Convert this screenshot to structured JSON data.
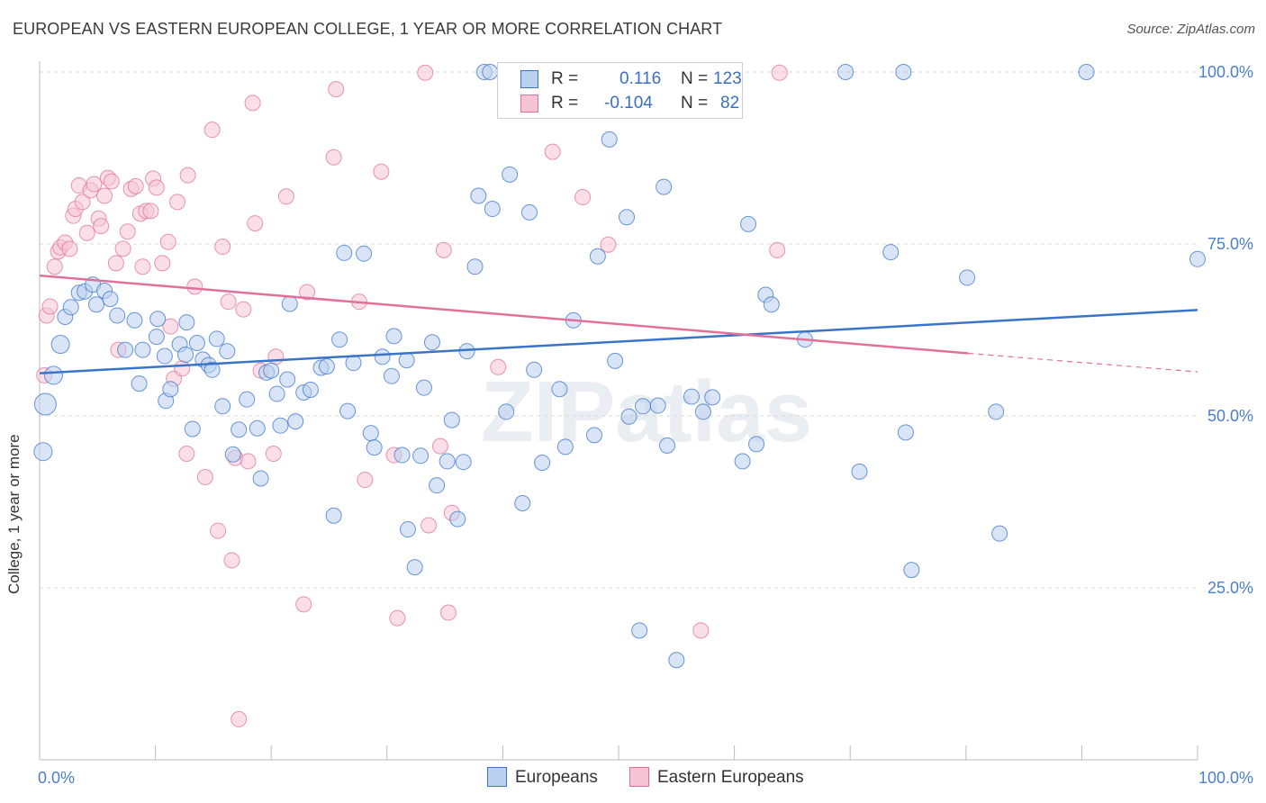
{
  "title": "EUROPEAN VS EASTERN EUROPEAN COLLEGE, 1 YEAR OR MORE CORRELATION CHART",
  "source": "Source: ZipAtlas.com",
  "watermark": "ZIPatlas",
  "colors": {
    "blue": "#3a74c8",
    "blue_fill": "#b9d0ef",
    "pink": "#e0729a",
    "pink_fill": "#f6c4d5",
    "grid": "#d8d8d8",
    "tick_label": "#4a7fcc"
  },
  "legend": {
    "rows": [
      {
        "r_label": "R =",
        "r_value": "0.116",
        "n_label": "N =",
        "n_value": "123"
      },
      {
        "r_label": "R =",
        "r_value": "-0.104",
        "n_label": "N =",
        "n_value": "82"
      }
    ]
  },
  "chart_data": {
    "type": "scatter",
    "title": "EUROPEAN VS EASTERN EUROPEAN COLLEGE, 1 YEAR OR MORE CORRELATION CHART",
    "xlabel": "",
    "ylabel": "College, 1 year or more",
    "xlim": [
      0,
      100
    ],
    "ylim": [
      0,
      100
    ],
    "x_tick_labels": [
      "0.0%",
      "100.0%"
    ],
    "y_ticks": [
      25,
      50,
      75,
      100
    ],
    "y_tick_labels": [
      "25.0%",
      "50.0%",
      "75.0%",
      "100.0%"
    ],
    "grid": true,
    "series": [
      {
        "name": "Europeans",
        "color": "#3a74c8",
        "r": 0.116,
        "n": 123,
        "trend": {
          "x0": 0,
          "y0": 56.2,
          "x1": 100,
          "y1": 65.4
        },
        "points": [
          [
            0.3,
            44.8
          ],
          [
            0.5,
            51.7
          ],
          [
            1.2,
            55.9
          ],
          [
            1.8,
            60.4
          ],
          [
            2.2,
            64.4
          ],
          [
            2.7,
            65.8
          ],
          [
            3.4,
            67.9
          ],
          [
            3.9,
            68.1
          ],
          [
            4.6,
            69.1
          ],
          [
            4.9,
            66.2
          ],
          [
            5.6,
            68.2
          ],
          [
            6.1,
            67.0
          ],
          [
            6.7,
            64.6
          ],
          [
            7.4,
            59.6
          ],
          [
            8.2,
            63.9
          ],
          [
            8.6,
            54.7
          ],
          [
            8.9,
            59.6
          ],
          [
            10.2,
            64.1
          ],
          [
            10.1,
            61.5
          ],
          [
            10.8,
            58.7
          ],
          [
            10.9,
            52.2
          ],
          [
            11.3,
            53.9
          ],
          [
            12.1,
            60.4
          ],
          [
            12.6,
            58.9
          ],
          [
            12.7,
            63.6
          ],
          [
            13.2,
            48.1
          ],
          [
            13.6,
            60.6
          ],
          [
            14.1,
            58.2
          ],
          [
            14.6,
            57.4
          ],
          [
            14.9,
            56.7
          ],
          [
            15.3,
            61.2
          ],
          [
            15.8,
            51.4
          ],
          [
            16.2,
            59.4
          ],
          [
            16.7,
            44.4
          ],
          [
            17.2,
            48.0
          ],
          [
            17.9,
            52.4
          ],
          [
            18.8,
            48.2
          ],
          [
            19.1,
            40.9
          ],
          [
            19.6,
            56.3
          ],
          [
            20.0,
            56.6
          ],
          [
            20.5,
            53.2
          ],
          [
            20.8,
            48.6
          ],
          [
            21.4,
            55.3
          ],
          [
            21.6,
            66.3
          ],
          [
            22.1,
            49.2
          ],
          [
            22.8,
            53.4
          ],
          [
            23.4,
            53.8
          ],
          [
            24.3,
            57.0
          ],
          [
            24.8,
            57.2
          ],
          [
            25.4,
            35.5
          ],
          [
            25.9,
            61.1
          ],
          [
            26.3,
            73.7
          ],
          [
            26.6,
            50.7
          ],
          [
            27.1,
            57.7
          ],
          [
            28.0,
            73.6
          ],
          [
            28.6,
            47.5
          ],
          [
            28.9,
            45.4
          ],
          [
            29.6,
            58.6
          ],
          [
            30.4,
            55.8
          ],
          [
            30.6,
            61.6
          ],
          [
            31.3,
            44.3
          ],
          [
            31.7,
            58.1
          ],
          [
            31.8,
            33.5
          ],
          [
            32.4,
            28.0
          ],
          [
            32.9,
            44.2
          ],
          [
            33.2,
            54.1
          ],
          [
            33.9,
            60.7
          ],
          [
            34.3,
            39.9
          ],
          [
            35.2,
            43.4
          ],
          [
            35.6,
            49.4
          ],
          [
            36.1,
            35.0
          ],
          [
            36.6,
            43.3
          ],
          [
            36.9,
            59.4
          ],
          [
            37.6,
            71.7
          ],
          [
            37.9,
            82.0
          ],
          [
            38.4,
            100.0
          ],
          [
            38.9,
            100.0
          ],
          [
            39.1,
            80.1
          ],
          [
            40.6,
            85.1
          ],
          [
            40.3,
            50.6
          ],
          [
            41.7,
            37.3
          ],
          [
            42.3,
            79.6
          ],
          [
            42.7,
            56.7
          ],
          [
            43.4,
            43.2
          ],
          [
            44.9,
            53.9
          ],
          [
            45.4,
            45.5
          ],
          [
            46.1,
            63.9
          ],
          [
            47.3,
            100.0
          ],
          [
            47.9,
            47.2
          ],
          [
            48.2,
            73.2
          ],
          [
            49.2,
            90.2
          ],
          [
            49.7,
            58.0
          ],
          [
            50.7,
            78.9
          ],
          [
            50.9,
            49.9
          ],
          [
            51.8,
            18.8
          ],
          [
            52.1,
            51.4
          ],
          [
            53.4,
            51.5
          ],
          [
            53.9,
            83.3
          ],
          [
            54.2,
            45.7
          ],
          [
            54.8,
            99.8
          ],
          [
            55.0,
            14.5
          ],
          [
            56.3,
            52.8
          ],
          [
            57.3,
            50.6
          ],
          [
            58.1,
            52.7
          ],
          [
            60.7,
            43.4
          ],
          [
            61.2,
            77.9
          ],
          [
            61.9,
            45.9
          ],
          [
            62.7,
            67.6
          ],
          [
            63.2,
            66.2
          ],
          [
            66.1,
            61.1
          ],
          [
            69.6,
            100.0
          ],
          [
            70.8,
            41.9
          ],
          [
            73.5,
            73.8
          ],
          [
            74.8,
            47.6
          ],
          [
            75.3,
            27.6
          ],
          [
            74.6,
            100.0
          ],
          [
            80.1,
            70.1
          ],
          [
            82.6,
            50.6
          ],
          [
            82.9,
            32.9
          ],
          [
            90.4,
            100.0
          ],
          [
            100.0,
            72.8
          ]
        ]
      },
      {
        "name": "Eastern Europeans",
        "color": "#e0729a",
        "r": -0.104,
        "n": 82,
        "trend": {
          "x0": 0,
          "y0": 70.4,
          "x1": 80.2,
          "y1": 59.1
        },
        "trend_dashed": {
          "x0": 80.2,
          "y0": 59.1,
          "x1": 100,
          "y1": 56.4
        },
        "points": [
          [
            0.4,
            55.9
          ],
          [
            0.6,
            64.6
          ],
          [
            0.9,
            65.9
          ],
          [
            1.3,
            71.7
          ],
          [
            1.6,
            73.9
          ],
          [
            1.8,
            74.5
          ],
          [
            2.2,
            75.2
          ],
          [
            2.6,
            74.3
          ],
          [
            2.9,
            79.1
          ],
          [
            3.1,
            80.1
          ],
          [
            3.4,
            83.5
          ],
          [
            3.7,
            81.1
          ],
          [
            4.1,
            76.6
          ],
          [
            4.4,
            82.8
          ],
          [
            4.7,
            83.7
          ],
          [
            5.1,
            78.7
          ],
          [
            5.3,
            77.6
          ],
          [
            5.6,
            82.0
          ],
          [
            5.9,
            84.6
          ],
          [
            6.2,
            84.1
          ],
          [
            6.6,
            72.2
          ],
          [
            6.8,
            59.6
          ],
          [
            7.2,
            74.3
          ],
          [
            7.6,
            76.8
          ],
          [
            7.9,
            83.0
          ],
          [
            8.3,
            83.4
          ],
          [
            8.7,
            79.4
          ],
          [
            8.9,
            71.7
          ],
          [
            9.2,
            79.8
          ],
          [
            9.6,
            79.8
          ],
          [
            9.8,
            84.5
          ],
          [
            10.1,
            83.2
          ],
          [
            10.6,
            72.2
          ],
          [
            11.1,
            75.3
          ],
          [
            11.3,
            63.0
          ],
          [
            11.6,
            55.4
          ],
          [
            11.9,
            81.1
          ],
          [
            12.3,
            56.9
          ],
          [
            12.8,
            85.0
          ],
          [
            12.7,
            44.5
          ],
          [
            13.4,
            68.8
          ],
          [
            14.3,
            41.1
          ],
          [
            14.9,
            91.6
          ],
          [
            15.4,
            33.3
          ],
          [
            15.8,
            74.6
          ],
          [
            16.3,
            66.6
          ],
          [
            16.6,
            29.0
          ],
          [
            16.9,
            43.9
          ],
          [
            17.2,
            5.9
          ],
          [
            17.6,
            65.5
          ],
          [
            18.0,
            43.4
          ],
          [
            18.4,
            95.5
          ],
          [
            18.6,
            78.0
          ],
          [
            19.1,
            56.6
          ],
          [
            20.2,
            44.5
          ],
          [
            20.4,
            58.6
          ],
          [
            21.3,
            81.9
          ],
          [
            22.8,
            22.6
          ],
          [
            23.1,
            68.0
          ],
          [
            25.4,
            87.6
          ],
          [
            25.6,
            97.5
          ],
          [
            27.6,
            66.6
          ],
          [
            28.1,
            40.7
          ],
          [
            29.5,
            85.5
          ],
          [
            30.6,
            44.3
          ],
          [
            30.9,
            20.6
          ],
          [
            33.3,
            99.9
          ],
          [
            33.6,
            34.1
          ],
          [
            34.6,
            45.6
          ],
          [
            34.9,
            74.1
          ],
          [
            35.3,
            21.4
          ],
          [
            35.6,
            35.9
          ],
          [
            39.6,
            57.1
          ],
          [
            44.3,
            88.4
          ],
          [
            46.9,
            81.8
          ],
          [
            49.1,
            74.9
          ],
          [
            49.8,
            99.8
          ],
          [
            57.1,
            18.8
          ],
          [
            63.7,
            74.1
          ],
          [
            63.9,
            99.9
          ]
        ]
      }
    ]
  },
  "bottom_legend": [
    {
      "label": "Europeans"
    },
    {
      "label": "Eastern Europeans"
    }
  ]
}
